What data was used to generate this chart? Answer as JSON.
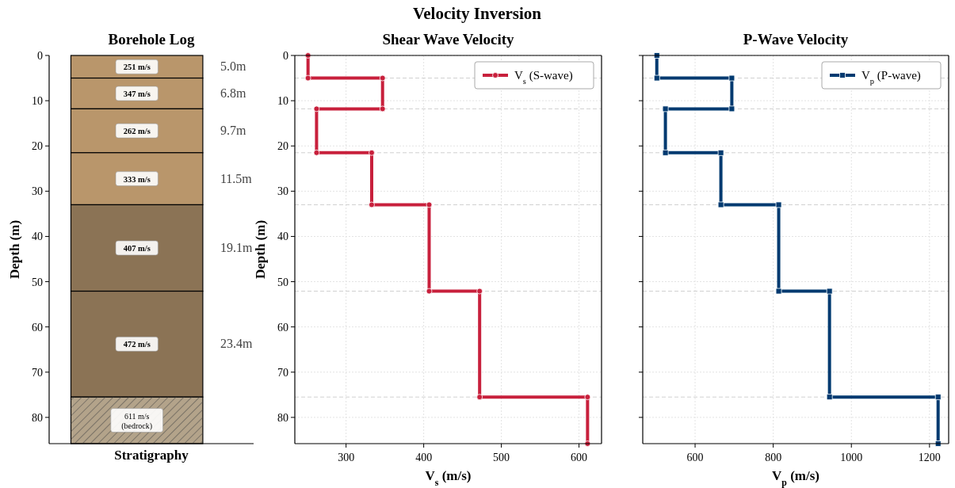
{
  "chart_data": [
    {
      "type": "bar",
      "title": "Borehole Log",
      "xlabel": "Stratigraphy",
      "ylabel": "Depth (m)",
      "stacked": true,
      "categories": [
        null
      ],
      "ylim": [
        85.8,
        0
      ],
      "yticks": [
        0,
        10,
        20,
        30,
        40,
        50,
        60,
        70,
        80
      ],
      "grid": false,
      "series": [
        {
          "color": "#b9966b",
          "values": [
            5.0
          ]
        },
        {
          "color": "#b9966b",
          "values": [
            6.8
          ]
        },
        {
          "color": "#b9966b",
          "values": [
            9.7
          ]
        },
        {
          "color": "#b9966b",
          "values": [
            11.5
          ]
        },
        {
          "color": "#8b7355",
          "values": [
            19.1
          ]
        },
        {
          "color": "#8b7355",
          "values": [
            23.4
          ]
        },
        {
          "color": "#b3a38a",
          "values": [
            10.3
          ]
        }
      ],
      "annotations": [
        "Velocity Inversion",
        "251 m/s",
        "347 m/s",
        "262 m/s",
        "333 m/s",
        "407 m/s",
        "472 m/s",
        "611 m/s\n(bedrock)",
        "5.0m",
        "6.8m",
        "9.7m",
        "11.5m",
        "19.1m",
        "23.4m"
      ]
    },
    {
      "type": "line",
      "title": "Shear Wave Velocity",
      "xlabel": "V$_{s}$ (m/s)",
      "ylabel": "Depth (m)",
      "xlim": [
        234,
        629
      ],
      "xticks": [
        300,
        400,
        500,
        600
      ],
      "ylim": [
        85.8,
        0
      ],
      "yticks": [
        0,
        10,
        20,
        30,
        40,
        50,
        60,
        70,
        80
      ],
      "grid": true,
      "legend": "top right",
      "marker": "circle",
      "line_style": "solid",
      "series": [
        {
          "name": "V$_{s}$ (S-wave)",
          "color": "#c8203c",
          "x": [
            251,
            251,
            347,
            347,
            262,
            262,
            333,
            333,
            407,
            407,
            472,
            472,
            611,
            611
          ],
          "values": [
            0,
            5,
            5,
            11.8,
            11.8,
            21.5,
            21.5,
            33,
            33,
            52.1,
            52.1,
            75.5,
            75.5,
            85.8
          ]
        }
      ],
      "ref_lines": [
        {
          "axis": "y",
          "value": 5,
          "line_style": "dashed",
          "color": "#d0d0d0"
        },
        {
          "axis": "y",
          "value": 11.8,
          "line_style": "dashed",
          "color": "#d0d0d0"
        },
        {
          "axis": "y",
          "value": 21.5,
          "line_style": "dashed",
          "color": "#d0d0d0"
        },
        {
          "axis": "y",
          "value": 33,
          "line_style": "dashed",
          "color": "#d0d0d0"
        },
        {
          "axis": "y",
          "value": 52.1,
          "line_style": "dashed",
          "color": "#d0d0d0"
        },
        {
          "axis": "y",
          "value": 75.5,
          "line_style": "dashed",
          "color": "#d0d0d0"
        }
      ]
    },
    {
      "type": "line",
      "title": "P-Wave Velocity",
      "xlabel": "V$_{p}$ (m/s)",
      "xlim": [
        466,
        1249
      ],
      "xticks": [
        600,
        800,
        1000,
        1200
      ],
      "ylim": [
        85.8,
        0
      ],
      "yticks": [
        0,
        10,
        20,
        30,
        40,
        50,
        60,
        70,
        80
      ],
      "tick_labels": "x",
      "grid": true,
      "legend": "top right",
      "marker": "square",
      "line_style": "solid",
      "series": [
        {
          "name": "V$_{p}$ (P-wave)",
          "color": "#003a70",
          "x": [
            502,
            502,
            694,
            694,
            524,
            524,
            666,
            666,
            814,
            814,
            944,
            944,
            1222,
            1222
          ],
          "values": [
            0,
            5,
            5,
            11.8,
            11.8,
            21.5,
            21.5,
            33,
            33,
            52.1,
            52.1,
            75.5,
            75.5,
            85.8
          ]
        }
      ],
      "ref_lines": [
        {
          "axis": "y",
          "value": 5,
          "line_style": "dashed",
          "color": "#d0d0d0"
        },
        {
          "axis": "y",
          "value": 11.8,
          "line_style": "dashed",
          "color": "#d0d0d0"
        },
        {
          "axis": "y",
          "value": 21.5,
          "line_style": "dashed",
          "color": "#d0d0d0"
        },
        {
          "axis": "y",
          "value": 33,
          "line_style": "dashed",
          "color": "#d0d0d0"
        },
        {
          "axis": "y",
          "value": 52.1,
          "line_style": "dashed",
          "color": "#d0d0d0"
        },
        {
          "axis": "y",
          "value": 75.5,
          "line_style": "dashed",
          "color": "#d0d0d0"
        }
      ]
    }
  ]
}
